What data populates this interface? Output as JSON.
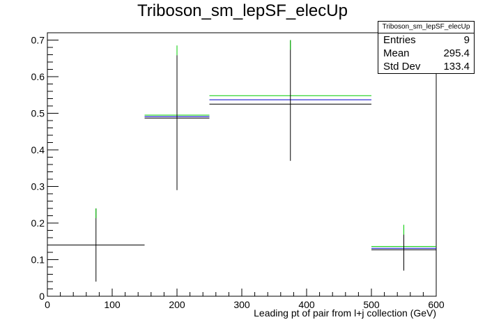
{
  "chart_data": {
    "type": "histogram",
    "title": "Triboson_sm_lepSF_elecUp",
    "xlabel": "Leading pt of pair from l+j collection (GeV)",
    "ylabel": "",
    "xlim": [
      0,
      600
    ],
    "ylim": [
      0,
      0.72
    ],
    "x_ticks": [
      0,
      100,
      200,
      300,
      400,
      500,
      600
    ],
    "y_ticks": [
      0,
      0.1,
      0.2,
      0.3,
      0.4,
      0.5,
      0.6,
      0.7
    ],
    "grid": false,
    "bins": [
      {
        "x_low": 0,
        "x_high": 150,
        "value": 0.14,
        "err_low": 0.04,
        "err_high": 0.24
      },
      {
        "x_low": 150,
        "x_high": 250,
        "value": 0.487,
        "err_low": 0.29,
        "err_high": 0.685
      },
      {
        "x_low": 250,
        "x_high": 500,
        "value": 0.525,
        "err_low": 0.37,
        "err_high": 0.7
      },
      {
        "x_low": 500,
        "x_high": 600,
        "value": 0.127,
        "err_low": 0.07,
        "err_high": 0.195
      }
    ],
    "series": [
      {
        "color": "#000000",
        "values": [
          0.14,
          0.487,
          0.525,
          0.127
        ]
      },
      {
        "color": "#0000cc",
        "values": [
          0.14,
          0.491,
          0.537,
          0.131
        ]
      },
      {
        "color": "#00cc00",
        "values": [
          0.14,
          0.495,
          0.548,
          0.136
        ]
      }
    ],
    "stats": {
      "name": "Triboson_sm_lepSF_elecUp",
      "entries_label": "Entries",
      "entries": "9",
      "mean_label": "Mean",
      "mean": "295.4",
      "stddev_label": "Std Dev",
      "stddev": "133.4"
    }
  }
}
